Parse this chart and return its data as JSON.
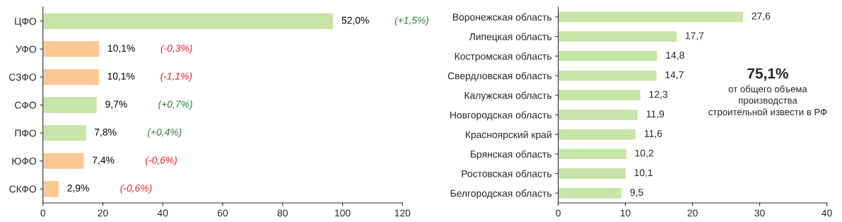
{
  "chart_data": [
    {
      "type": "bar",
      "orientation": "horizontal",
      "categories": [
        "ЦФО",
        "УФО",
        "СЗФО",
        "СФО",
        "ПФО",
        "ЮФО",
        "СКФО"
      ],
      "values": [
        97,
        18.9,
        18.8,
        18.1,
        14.5,
        13.8,
        5.4
      ],
      "colors": [
        "#c6e5a6",
        "#fbc795",
        "#fbc795",
        "#c6e5a6",
        "#c6e5a6",
        "#fbc795",
        "#fbc795"
      ],
      "xlim": [
        0,
        120
      ],
      "xticks": [
        0,
        20,
        40,
        60,
        80,
        100,
        120
      ],
      "annotations": [
        "(+1,5%)",
        "(-0,3%)",
        "(-1,1%)",
        "(+0,7%)",
        "(+0,4%)",
        "(-0,6%)",
        "(-0,6%)",
        {
          "text": "52,0%",
          "x": 97,
          "y": "ЦФО"
        },
        {
          "text": "10,1%",
          "x": 18.9,
          "y": "УФО"
        },
        {
          "text": "10,1%",
          "x": 18.8,
          "y": "СЗФО"
        },
        {
          "text": "9,7%",
          "x": 18.1,
          "y": "СФО"
        },
        {
          "text": "7,8%",
          "x": 14.5,
          "y": "ПФО"
        },
        {
          "text": "7,4%",
          "x": 13.8,
          "y": "ЮФО"
        },
        {
          "text": "2,9%",
          "x": 5.4,
          "y": "СКФО"
        }
      ]
    },
    {
      "type": "bar",
      "orientation": "horizontal",
      "categories": [
        "Воронежская область",
        "Липецкая область",
        "Костромская область",
        "Свердловская область",
        "Калужская область",
        "Новгородская область",
        "Красноярский край",
        "Брянская область",
        "Ростовская область",
        "Белгородская область"
      ],
      "values": [
        27.6,
        17.7,
        14.8,
        14.7,
        12.3,
        11.9,
        11.6,
        10.2,
        10.1,
        9.5
      ],
      "colors": [
        "#c6e5a6",
        "#c6e5a6",
        "#c6e5a6",
        "#c6e5a6",
        "#c6e5a6",
        "#c6e5a6",
        "#c6e5a6",
        "#c6e5a6",
        "#c6e5a6",
        "#c6e5a6"
      ],
      "value_labels": [
        "27,6",
        "17,7",
        "14,8",
        "14,7",
        "12,3",
        "11,9",
        "11,6",
        "10,2",
        "10,1",
        "9,5"
      ],
      "xlim": [
        0,
        40
      ],
      "xticks": [
        0,
        10,
        20,
        30,
        40
      ],
      "annotations": [
        "75,1%",
        "от общего объема\nпроизводства\nстроительной извести в РФ"
      ]
    }
  ]
}
